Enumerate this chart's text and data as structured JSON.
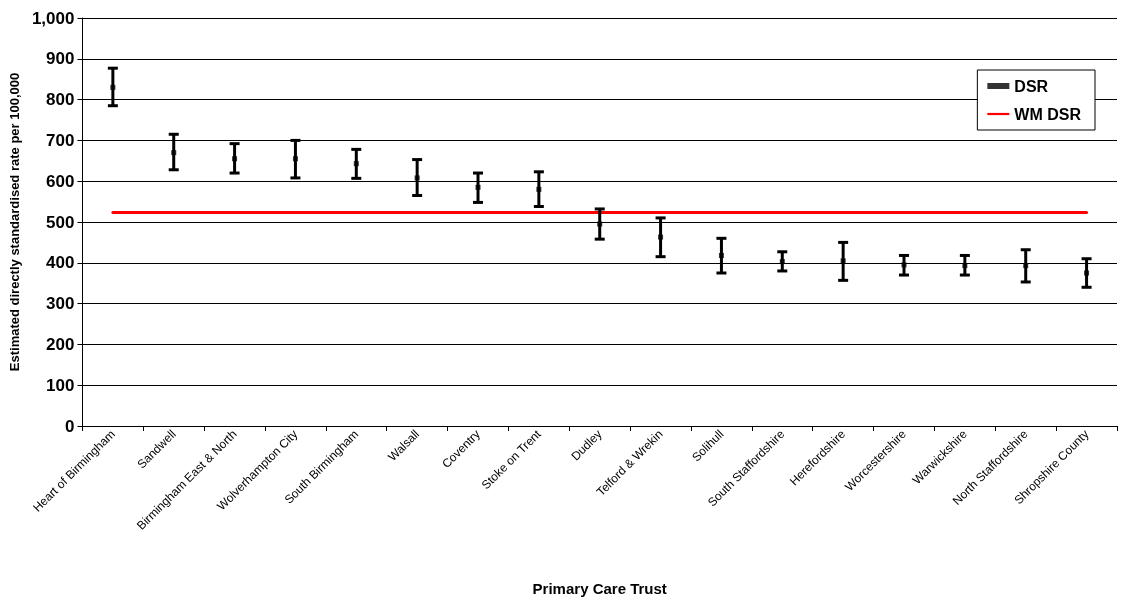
{
  "chart_data": {
    "type": "scatter",
    "xlabel": "Primary Care Trust",
    "ylabel": "Estimated directly standardised rate per 100,000",
    "categories": [
      "Heart of Birmingham",
      "Sandwell",
      "Birmingham East & North",
      "Wolverhampton City",
      "South Birmingham",
      "Walsall",
      "Coventry",
      "Stoke on Trent",
      "Dudley",
      "Telford & Wrekin",
      "Solihull",
      "South Staffordshire",
      "Herefordshire",
      "Worcestershire",
      "Warwickshire",
      "North Staffordshire",
      "Shropshire County"
    ],
    "series": [
      {
        "name": "DSR",
        "color": "#000000",
        "marker": "square",
        "values": [
          830,
          670,
          655,
          655,
          643,
          608,
          585,
          580,
          495,
          463,
          418,
          403,
          405,
          395,
          393,
          393,
          375
        ],
        "errors": [
          [
            785,
            877
          ],
          [
            628,
            715
          ],
          [
            620,
            692
          ],
          [
            608,
            700
          ],
          [
            607,
            678
          ],
          [
            565,
            653
          ],
          [
            548,
            620
          ],
          [
            538,
            623
          ],
          [
            458,
            532
          ],
          [
            415,
            510
          ],
          [
            375,
            460
          ],
          [
            380,
            427
          ],
          [
            357,
            450
          ],
          [
            370,
            418
          ],
          [
            370,
            418
          ],
          [
            353,
            432
          ],
          [
            340,
            410
          ]
        ]
      },
      {
        "name": "WM DSR",
        "color": "#ff0000",
        "type": "line",
        "marker": "none",
        "values": [
          523,
          523,
          523,
          523,
          523,
          523,
          523,
          523,
          523,
          523,
          523,
          523,
          523,
          523,
          523,
          523,
          523
        ]
      }
    ],
    "ylim": [
      0,
      1000
    ],
    "yticks": [
      0,
      100,
      200,
      300,
      400,
      500,
      600,
      700,
      800,
      900,
      {
        "value": 1000,
        "label": "1,000"
      }
    ],
    "grid": "y",
    "legend": "top right"
  }
}
